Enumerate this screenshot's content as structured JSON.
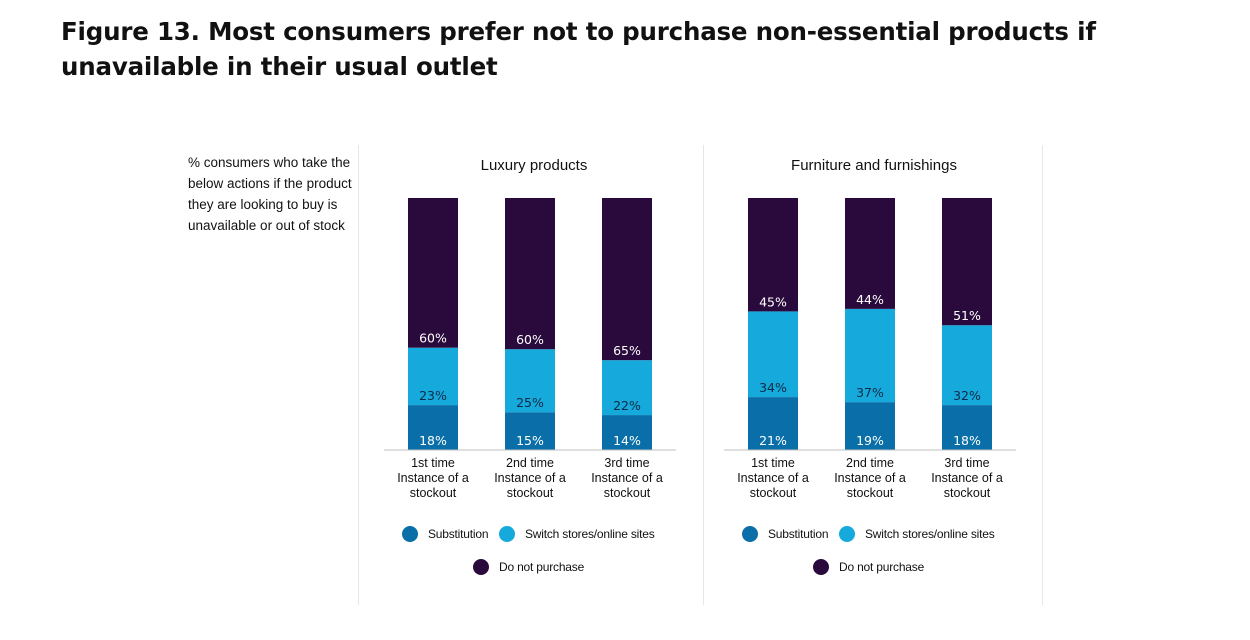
{
  "title": "Figure 13. Most consumers prefer not to purchase non-essential products if unavailable in their usual outlet",
  "note": "% consumers who take the below actions if the product they are looking to buy is unavailable or out of stock",
  "colors": {
    "substitution": "#0a6fa8",
    "switch": "#15a9dc",
    "do_not_purchase": "#2a0a3c"
  },
  "legend": {
    "substitution": "Substitution",
    "switch": "Switch stores/online sites",
    "do_not_purchase": "Do not purchase"
  },
  "chart_data": [
    {
      "type": "bar",
      "stacked": true,
      "title": "Luxury products",
      "categories": [
        [
          "1st time",
          "Instance of a",
          "stockout"
        ],
        [
          "2nd time",
          "Instance of a",
          "stockout"
        ],
        [
          "3rd time",
          "Instance of a",
          "stockout"
        ]
      ],
      "series": [
        {
          "name": "Substitution",
          "values": [
            18,
            15,
            14
          ]
        },
        {
          "name": "Switch stores/online sites",
          "values": [
            23,
            25,
            22
          ]
        },
        {
          "name": "Do not purchase",
          "values": [
            60,
            60,
            65
          ]
        }
      ],
      "ylim": [
        0,
        100
      ],
      "legend_position": "bottom"
    },
    {
      "type": "bar",
      "stacked": true,
      "title": "Furniture and furnishings",
      "categories": [
        [
          "1st time",
          "Instance of a",
          "stockout"
        ],
        [
          "2nd time",
          "Instance of a",
          "stockout"
        ],
        [
          "3rd time",
          "Instance of a",
          "stockout"
        ]
      ],
      "series": [
        {
          "name": "Substitution",
          "values": [
            21,
            19,
            18
          ]
        },
        {
          "name": "Switch stores/online sites",
          "values": [
            34,
            37,
            32
          ]
        },
        {
          "name": "Do not purchase",
          "values": [
            45,
            44,
            51
          ]
        }
      ],
      "ylim": [
        0,
        100
      ],
      "legend_position": "bottom"
    }
  ]
}
